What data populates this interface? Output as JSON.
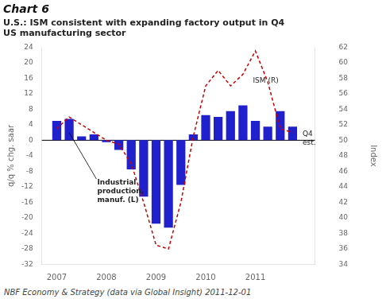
{
  "chart_data": {
    "type": "bar",
    "title": "Chart 6",
    "subtitle": [
      "U.S.: ISM consistent with expanding factory output in Q4",
      "US manufacturing sector"
    ],
    "footer": "NBF Economy & Strategy (data via Global Insight) 2011-12-01",
    "ylabel": "q/q % chg. saar",
    "y2label": "Index",
    "x": [
      2007.0,
      2007.25,
      2007.5,
      2007.75,
      2008.0,
      2008.25,
      2008.5,
      2008.75,
      2009.0,
      2009.25,
      2009.5,
      2009.75,
      2010.0,
      2010.25,
      2010.5,
      2010.75,
      2011.0,
      2011.25,
      2011.5,
      2011.75
    ],
    "series": [
      {
        "type": "bar",
        "color": "#2020cc",
        "values": [
          5.0,
          5.5,
          1.0,
          1.5,
          -0.5,
          -2.5,
          -7.5,
          -14.5,
          -21.5,
          -22.5,
          -11.5,
          1.5,
          6.5,
          6.0,
          7.5,
          9.0,
          5.0,
          3.5,
          7.5,
          3.5
        ]
      },
      {
        "type": "line",
        "axis": "y2",
        "color": "#cc0000",
        "line_style": "dashed",
        "values": [
          51.5,
          53.0,
          52.0,
          51.0,
          50.0,
          49.5,
          47.0,
          42.0,
          36.5,
          36.0,
          42.0,
          50.5,
          57.0,
          59.0,
          57.0,
          58.5,
          61.5,
          57.5,
          51.5,
          51.0
        ]
      }
    ],
    "xlim": [
      2006.7,
      2012.2
    ],
    "xticks": [
      2007,
      2008,
      2009,
      2010,
      2011
    ],
    "ylim": [
      -32,
      24
    ],
    "yticks": [
      -32,
      -28,
      -24,
      -20,
      -16,
      -12,
      -8,
      -4,
      0,
      4,
      8,
      12,
      16,
      20,
      24
    ],
    "y2lim": [
      34,
      62
    ],
    "y2ticks": [
      34,
      36,
      38,
      40,
      42,
      44,
      46,
      48,
      50,
      52,
      54,
      56,
      58,
      60,
      62
    ],
    "grid": false,
    "annotations": [
      {
        "text": "ISM (R)",
        "x": 2010.95,
        "y": 57.2,
        "axis": "y2"
      },
      {
        "text": "Industrial\nproduction,\nmanuf. (L)",
        "x": 2007.8,
        "y": -10.0,
        "axis": "y",
        "arrow_x": 2007.25,
        "arrow_y": 2.0
      },
      {
        "text": "Q4\nest.",
        "x": 2011.95,
        "y": 0.5,
        "axis": "y"
      }
    ]
  }
}
